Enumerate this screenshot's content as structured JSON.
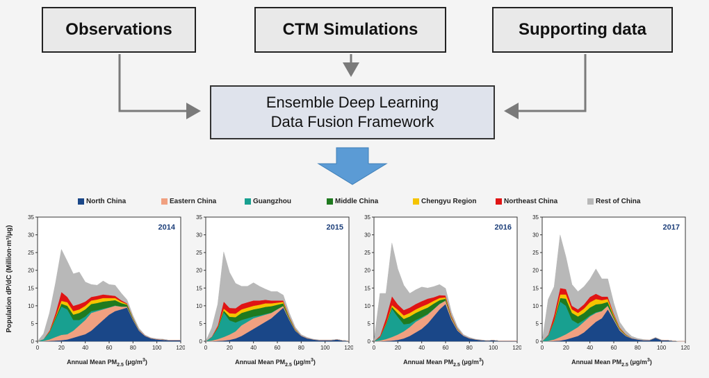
{
  "boxes": {
    "observations": "Observations",
    "ctm": "CTM Simulations",
    "supporting": "Supporting data",
    "fusion_line1": "Ensemble Deep Learning",
    "fusion_line2": "Data Fusion Framework"
  },
  "colors": {
    "north_china": "#1a4788",
    "eastern_china": "#f0a080",
    "guangzhou": "#18a090",
    "middle_china": "#1f7a1f",
    "chengyu": "#f5c400",
    "northeast": "#e01414",
    "rest": "#b8b8b8",
    "down_arrow": "#5b9bd5"
  },
  "legend": [
    {
      "label": "North China",
      "color": "#1a4788"
    },
    {
      "label": "Eastern China",
      "color": "#f0a080"
    },
    {
      "label": "Guangzhou",
      "color": "#18a090"
    },
    {
      "label": "Middle China",
      "color": "#1f7a1f"
    },
    {
      "label": "Chengyu Region",
      "color": "#f5c400"
    },
    {
      "label": "Northeast China",
      "color": "#e01414"
    },
    {
      "label": "Rest of China",
      "color": "#b8b8b8"
    }
  ],
  "ylabel": "Population dP/dC (Million·m³/μg)",
  "xlabel_main": "Annual Mean PM",
  "xlabel_sub": "2.5",
  "xlabel_unit": "(μg/m",
  "xlabel_sup": "3",
  "xlabel_close": ")",
  "chart_data": {
    "type": "area",
    "stacked": true,
    "xlim": [
      0,
      120
    ],
    "ylim": [
      0,
      35
    ],
    "x_ticks": [
      0,
      20,
      40,
      60,
      80,
      100,
      120
    ],
    "y_ticks": [
      0,
      5,
      10,
      15,
      20,
      25,
      30,
      35
    ],
    "x": [
      0,
      5,
      10,
      15,
      20,
      25,
      30,
      35,
      40,
      45,
      50,
      55,
      60,
      65,
      70,
      75,
      80,
      85,
      90,
      95,
      100,
      105,
      110,
      115,
      120
    ],
    "panels": [
      {
        "title": "2014",
        "series": [
          {
            "name": "North China",
            "values": [
              0,
              0,
              0.1,
              0.2,
              0.3,
              0.5,
              1,
              1.5,
              2,
              3,
              4.5,
              6,
              7.5,
              8.5,
              9,
              9.5,
              6,
              3,
              1.5,
              0.8,
              0.5,
              0.4,
              0.3,
              0.3,
              0.3
            ]
          },
          {
            "name": "Eastern China",
            "values": [
              0,
              0.1,
              0.4,
              1,
              1.5,
              1.5,
              2,
              3,
              4,
              5,
              4,
              3,
              2,
              1.5,
              0.8,
              0.3,
              0.3,
              0.2,
              0.1,
              0.1,
              0.1,
              0.1,
              0,
              0,
              0
            ]
          },
          {
            "name": "Guangzhou",
            "values": [
              0,
              0.5,
              2,
              5,
              8,
              7,
              3,
              1.5,
              1,
              0.5,
              0.3,
              0.2,
              0.1,
              0.1,
              0,
              0,
              0,
              0,
              0,
              0,
              0,
              0,
              0,
              0,
              0
            ]
          },
          {
            "name": "Middle China",
            "values": [
              0,
              0,
              0.1,
              0.4,
              0.8,
              1,
              1.5,
              2,
              2,
              2,
              2,
              2,
              1.8,
              1.5,
              1,
              0.5,
              0.2,
              0.1,
              0,
              0,
              0,
              0,
              0,
              0,
              0
            ]
          },
          {
            "name": "Chengyu Region",
            "values": [
              0,
              0,
              0.1,
              0.3,
              0.8,
              1,
              1,
              1,
              1,
              1,
              1,
              1,
              0.8,
              0.6,
              0.4,
              0.2,
              0.1,
              0,
              0,
              0,
              0,
              0,
              0,
              0,
              0
            ]
          },
          {
            "name": "Northeast China",
            "values": [
              0,
              0,
              0.3,
              1,
              2.5,
              1.5,
              1.5,
              1.5,
              1.2,
              1,
              1,
              1,
              0.8,
              0.6,
              0.4,
              0.2,
              0.1,
              0,
              0,
              0,
              0,
              0,
              0,
              0,
              0
            ]
          },
          {
            "name": "Rest of China",
            "values": [
              0,
              1.5,
              5,
              8.5,
              12,
              10,
              9,
              9,
              5.5,
              3.5,
              3,
              3.8,
              3,
              3,
              2,
              1,
              0.6,
              0.4,
              0.2,
              0.1,
              0.1,
              0.1,
              0,
              0,
              0
            ]
          }
        ]
      },
      {
        "title": "2015",
        "series": [
          {
            "name": "North China",
            "values": [
              0,
              0,
              0.1,
              0.2,
              0.4,
              0.8,
              1.5,
              2.5,
              3.5,
              4.5,
              5.5,
              6.5,
              8,
              9.5,
              6,
              3,
              1.5,
              0.8,
              0.5,
              0.3,
              0.3,
              0.3,
              0.5,
              0.2,
              0.1
            ]
          },
          {
            "name": "Eastern China",
            "values": [
              0,
              0.2,
              0.5,
              1,
              1.5,
              2,
              3,
              3,
              3,
              2.5,
              2,
              1.5,
              1,
              0.5,
              0.3,
              0.2,
              0.1,
              0.1,
              0,
              0,
              0,
              0,
              0,
              0,
              0
            ]
          },
          {
            "name": "Guangzhou",
            "values": [
              0,
              1,
              3,
              7,
              4,
              2.5,
              1.5,
              1,
              0.5,
              0.3,
              0.2,
              0.1,
              0.1,
              0,
              0,
              0,
              0,
              0,
              0,
              0,
              0,
              0,
              0,
              0,
              0
            ]
          },
          {
            "name": "Middle China",
            "values": [
              0,
              0,
              0.2,
              0.5,
              1,
              1.5,
              2,
              2,
              2,
              2,
              2,
              1.8,
              1.2,
              0.7,
              0.3,
              0.1,
              0,
              0,
              0,
              0,
              0,
              0,
              0,
              0,
              0
            ]
          },
          {
            "name": "Chengyu Region",
            "values": [
              0,
              0,
              0.1,
              0.5,
              1,
              1,
              1,
              1,
              1,
              1,
              1,
              0.8,
              0.6,
              0.4,
              0.2,
              0.1,
              0,
              0,
              0,
              0,
              0,
              0,
              0,
              0,
              0
            ]
          },
          {
            "name": "Northeast China",
            "values": [
              0,
              0.1,
              0.5,
              2,
              1.5,
              1.5,
              1.5,
              1.5,
              1.5,
              1.2,
              1,
              0.8,
              0.6,
              0.4,
              0.2,
              0.1,
              0,
              0,
              0,
              0,
              0,
              0,
              0,
              0,
              0
            ]
          },
          {
            "name": "Rest of China",
            "values": [
              0,
              2.5,
              6,
              14,
              10,
              7,
              5,
              4.5,
              5,
              4,
              3,
              2.5,
              2.5,
              1.5,
              1,
              0.5,
              0.3,
              0.2,
              0.1,
              0.1,
              0.1,
              0.1,
              0,
              0,
              0
            ]
          }
        ]
      },
      {
        "title": "2016",
        "series": [
          {
            "name": "North China",
            "values": [
              0,
              0,
              0.1,
              0.2,
              0.4,
              0.8,
              1.5,
              2.5,
              3.5,
              5,
              7,
              9,
              10.5,
              6,
              3,
              1.5,
              0.8,
              0.5,
              0.3,
              0.2,
              0.3,
              0.1,
              0.1,
              0.1,
              0.1
            ]
          },
          {
            "name": "Eastern China",
            "values": [
              0,
              0.2,
              0.5,
              1,
              1.5,
              2,
              2.5,
              3,
              3,
              2.5,
              2,
              1.5,
              1,
              0.5,
              0.3,
              0.1,
              0.1,
              0,
              0,
              0,
              0,
              0,
              0,
              0,
              0
            ]
          },
          {
            "name": "Guangzhou",
            "values": [
              0,
              1,
              4,
              8,
              5,
              2,
              1,
              0.5,
              0.3,
              0.2,
              0.1,
              0.1,
              0,
              0,
              0,
              0,
              0,
              0,
              0,
              0,
              0,
              0,
              0,
              0,
              0
            ]
          },
          {
            "name": "Middle China",
            "values": [
              0,
              0,
              0.2,
              0.5,
              1,
              1.5,
              2,
              2,
              2,
              1.8,
              1.5,
              1,
              0.5,
              0.2,
              0.1,
              0,
              0,
              0,
              0,
              0,
              0,
              0,
              0,
              0,
              0
            ]
          },
          {
            "name": "Chengyu Region",
            "values": [
              0,
              0,
              0.2,
              0.5,
              1,
              1,
              1,
              1,
              1,
              1,
              0.8,
              0.6,
              0.4,
              0.2,
              0.1,
              0,
              0,
              0,
              0,
              0,
              0,
              0,
              0,
              0,
              0
            ]
          },
          {
            "name": "Northeast China",
            "values": [
              0,
              0.3,
              1.5,
              2.5,
              1.5,
              1.5,
              1.5,
              1.5,
              1.5,
              1.5,
              1,
              0.8,
              0.5,
              0.3,
              0.1,
              0,
              0,
              0,
              0,
              0,
              0,
              0,
              0,
              0,
              0
            ]
          },
          {
            "name": "Rest of China",
            "values": [
              0,
              12,
              7,
              15,
              10,
              7,
              4,
              4,
              4,
              3,
              3,
              3,
              2,
              1,
              0.5,
              0.3,
              0.2,
              0.1,
              0.1,
              0,
              0,
              0,
              0,
              0,
              0
            ]
          }
        ]
      },
      {
        "title": "2017",
        "series": [
          {
            "name": "North China",
            "values": [
              0,
              0,
              0.1,
              0.2,
              0.5,
              1,
              1.5,
              2.5,
              4,
              5.5,
              6.5,
              9,
              6,
              3,
              1.5,
              0.8,
              0.5,
              0.3,
              0.3,
              1,
              0.3,
              0.3,
              0.1,
              0,
              0
            ]
          },
          {
            "name": "Eastern China",
            "values": [
              0,
              0.1,
              0.4,
              1,
              1.5,
              2,
              2.5,
              3,
              3,
              2.5,
              2,
              1,
              0.5,
              0.3,
              0.2,
              0.1,
              0,
              0,
              0,
              0,
              0,
              0,
              0,
              0,
              0
            ]
          },
          {
            "name": "Guangzhou",
            "values": [
              0,
              1.5,
              5,
              10,
              8,
              3,
              1,
              0.5,
              0.3,
              0.2,
              0.1,
              0.1,
              0,
              0,
              0,
              0,
              0,
              0,
              0,
              0,
              0,
              0,
              0,
              0,
              0
            ]
          },
          {
            "name": "Middle China",
            "values": [
              0,
              0,
              0.2,
              1,
              2,
              2,
              2,
              2,
              2.2,
              2.2,
              2,
              1,
              0.5,
              0.2,
              0.1,
              0,
              0,
              0,
              0,
              0,
              0,
              0,
              0,
              0,
              0
            ]
          },
          {
            "name": "Chengyu Region",
            "values": [
              0,
              0,
              0.2,
              1,
              1.2,
              1,
              1,
              1.2,
              1.5,
              1.5,
              1,
              0.8,
              0.4,
              0.2,
              0.1,
              0,
              0,
              0,
              0,
              0,
              0,
              0,
              0,
              0,
              0
            ]
          },
          {
            "name": "Northeast China",
            "values": [
              0,
              0.2,
              1.5,
              1.8,
              1.5,
              1,
              1,
              1.2,
              1.5,
              1.5,
              1,
              0.7,
              0.4,
              0.2,
              0.1,
              0,
              0,
              0,
              0,
              0,
              0,
              0,
              0,
              0,
              0
            ]
          },
          {
            "name": "Rest of China",
            "values": [
              0,
              10,
              8,
              15,
              9,
              6,
              5,
              5,
              5,
              7,
              5,
              5,
              3,
              1.5,
              1,
              0.5,
              0.3,
              0.2,
              0.1,
              0.1,
              0.1,
              0,
              0,
              0,
              0
            ]
          }
        ]
      }
    ]
  }
}
